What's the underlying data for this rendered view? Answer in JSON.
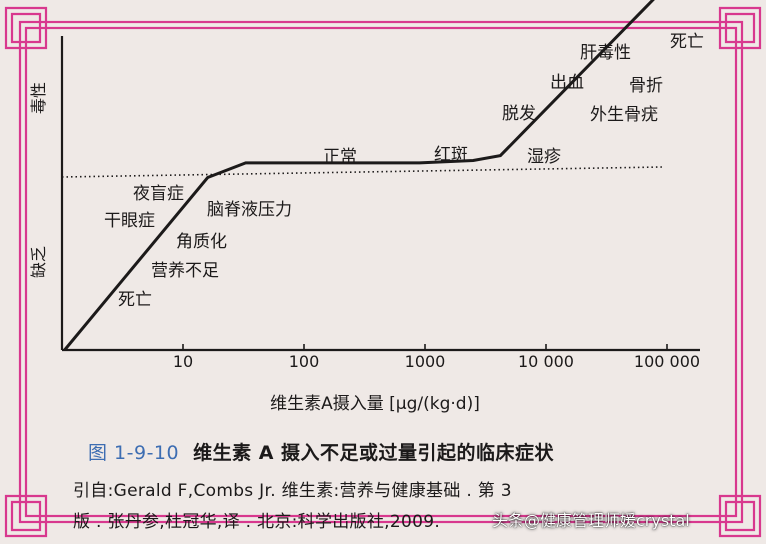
{
  "colors": {
    "frame": "#d8388e",
    "background": "#efe9e6",
    "ink": "#1c1a1a",
    "caption_number": "#3d6db2"
  },
  "chart_data": {
    "type": "line",
    "x_scale": "log",
    "xlabel": "维生素A摄入量 [μg/(kg·d)]",
    "x_ticks": [
      {
        "value": 10,
        "label": "10"
      },
      {
        "value": 100,
        "label": "100"
      },
      {
        "value": 1000,
        "label": "1000"
      },
      {
        "value": 10000,
        "label": "10 000"
      },
      {
        "value": 100000,
        "label": "100 000"
      }
    ],
    "y_axis_labels": {
      "upper": "毒性",
      "lower": "缺乏"
    },
    "reference_line": {
      "style": "dotted"
    },
    "curve": [
      {
        "x": 1.05,
        "level": 0.0
      },
      {
        "x": 16,
        "level": 0.71
      },
      {
        "x": 33,
        "level": 0.77
      },
      {
        "x": 900,
        "level": 0.77
      },
      {
        "x": 2500,
        "level": 0.78
      },
      {
        "x": 4200,
        "level": 0.8
      },
      {
        "x": 100000,
        "level": 1.5
      }
    ],
    "annotations": [
      "死亡",
      "营养不足",
      "角质化",
      "干眼症",
      "夜盲症",
      "脑脊液压力",
      "正常",
      "红斑",
      "湿疹",
      "脱发",
      "外生骨疣",
      "出血",
      "骨折",
      "肝毒性",
      "死亡"
    ]
  },
  "caption": {
    "figure_number": "图 1-9-10",
    "title": "维生素 A 摄入不足或过量引起的临床症状"
  },
  "source": {
    "line1": "引自:Gerald F,Combs Jr. 维生素:营养与健康基础 . 第 3",
    "line2": "版 . 张丹参,杜冠华,译 . 北京:科学出版社,2009."
  },
  "watermark": "头条@健康管理师媛crystal"
}
